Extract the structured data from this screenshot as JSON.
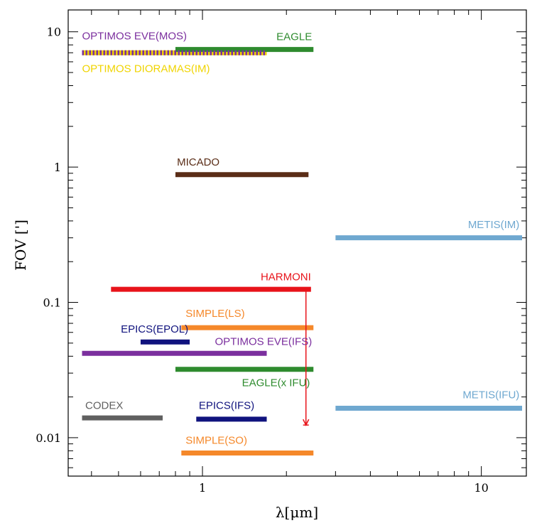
{
  "chart_data": {
    "type": "range-bar",
    "xlabel": "λ[μm]",
    "ylabel": "FOV [']",
    "x_scale": "log",
    "y_scale": "log",
    "xlim": [
      0.33,
      14.5
    ],
    "ylim": [
      0.0052,
      14.5
    ],
    "x_ticks": [
      {
        "value": 1,
        "label": "1"
      },
      {
        "value": 10,
        "label": "10"
      }
    ],
    "y_ticks": [
      {
        "value": 0.01,
        "label": "0.01"
      },
      {
        "value": 0.1,
        "label": "0.1"
      },
      {
        "value": 1,
        "label": "1"
      },
      {
        "value": 10,
        "label": "10"
      }
    ],
    "grid": false,
    "series": [
      {
        "name": "OPTIMOS EVE(MOS)",
        "color": "#7b2f9e",
        "x_start": 0.37,
        "x_end": 1.7,
        "fov": 7.0,
        "style": "dashed",
        "label_x": 0.37,
        "label_fov": 9.3,
        "label_anchor": "start"
      },
      {
        "name": "OPTIMOS DIORAMAS(IM)",
        "color": "#f0d400",
        "x_start": 0.37,
        "x_end": 1.7,
        "fov": 7.0,
        "style": "solid-under",
        "label_x": 0.37,
        "label_fov": 5.35,
        "label_anchor": "start"
      },
      {
        "name": "EAGLE",
        "color": "#2e8b2e",
        "x_start": 0.8,
        "x_end": 2.5,
        "fov": 7.4,
        "style": "solid",
        "label_x": 2.47,
        "label_fov": 9.2,
        "label_anchor": "end"
      },
      {
        "name": "MICADO",
        "color": "#5a2d17",
        "x_start": 0.8,
        "x_end": 2.4,
        "fov": 0.88,
        "style": "solid",
        "label_x": 0.81,
        "label_fov": 1.09,
        "label_anchor": "start"
      },
      {
        "name": "METIS(IM)",
        "color": "#6fa8d0",
        "x_start": 3.0,
        "x_end": 14.0,
        "fov": 0.3,
        "style": "solid",
        "label_x": 13.7,
        "label_fov": 0.375,
        "label_anchor": "end"
      },
      {
        "name": "HARMONI",
        "color": "#e8131a",
        "x_start": 0.47,
        "x_end": 2.45,
        "fov": 0.125,
        "style": "solid",
        "label_x": 2.45,
        "label_fov": 0.155,
        "label_anchor": "end"
      },
      {
        "name": "SIMPLE(LS)",
        "color": "#f5882a",
        "x_start": 0.84,
        "x_end": 2.5,
        "fov": 0.065,
        "style": "solid",
        "label_x": 0.87,
        "label_fov": 0.083,
        "label_anchor": "start"
      },
      {
        "name": "EPICS(EPOL)",
        "color": "#10137e",
        "x_start": 0.6,
        "x_end": 0.9,
        "fov": 0.051,
        "style": "solid",
        "label_x": 0.89,
        "label_fov": 0.0635,
        "label_anchor": "end"
      },
      {
        "name": "OPTIMOS EVE(IFS)",
        "color": "#7b2f9e",
        "x_start": 0.37,
        "x_end": 1.7,
        "fov": 0.042,
        "style": "solid",
        "label_x": 2.47,
        "label_fov": 0.0515,
        "label_anchor": "end"
      },
      {
        "name": "EAGLE(x IFU)",
        "color": "#2e8b2e",
        "x_start": 0.8,
        "x_end": 2.5,
        "fov": 0.032,
        "style": "solid",
        "label_x": 2.43,
        "label_fov": 0.0255,
        "label_anchor": "end"
      },
      {
        "name": "METIS(IFU)",
        "color": "#6fa8d0",
        "x_start": 3.0,
        "x_end": 14.0,
        "fov": 0.0165,
        "style": "solid",
        "label_x": 13.7,
        "label_fov": 0.0208,
        "label_anchor": "end"
      },
      {
        "name": "CODEX",
        "color": "#606060",
        "x_start": 0.37,
        "x_end": 0.72,
        "fov": 0.014,
        "style": "solid",
        "label_x": 0.38,
        "label_fov": 0.0173,
        "label_anchor": "start"
      },
      {
        "name": "EPICS(IFS)",
        "color": "#10137e",
        "x_start": 0.95,
        "x_end": 1.7,
        "fov": 0.0137,
        "style": "solid",
        "label_x": 0.97,
        "label_fov": 0.0173,
        "label_anchor": "start"
      },
      {
        "name": "SIMPLE(SO)",
        "color": "#f5882a",
        "x_start": 0.84,
        "x_end": 2.5,
        "fov": 0.0077,
        "style": "solid",
        "label_x": 0.87,
        "label_fov": 0.0096,
        "label_anchor": "start"
      }
    ],
    "annotations": [
      {
        "type": "arrow",
        "color": "#e8131a",
        "x": 2.35,
        "fov_start": 0.125,
        "fov_end": 0.0124
      }
    ]
  }
}
